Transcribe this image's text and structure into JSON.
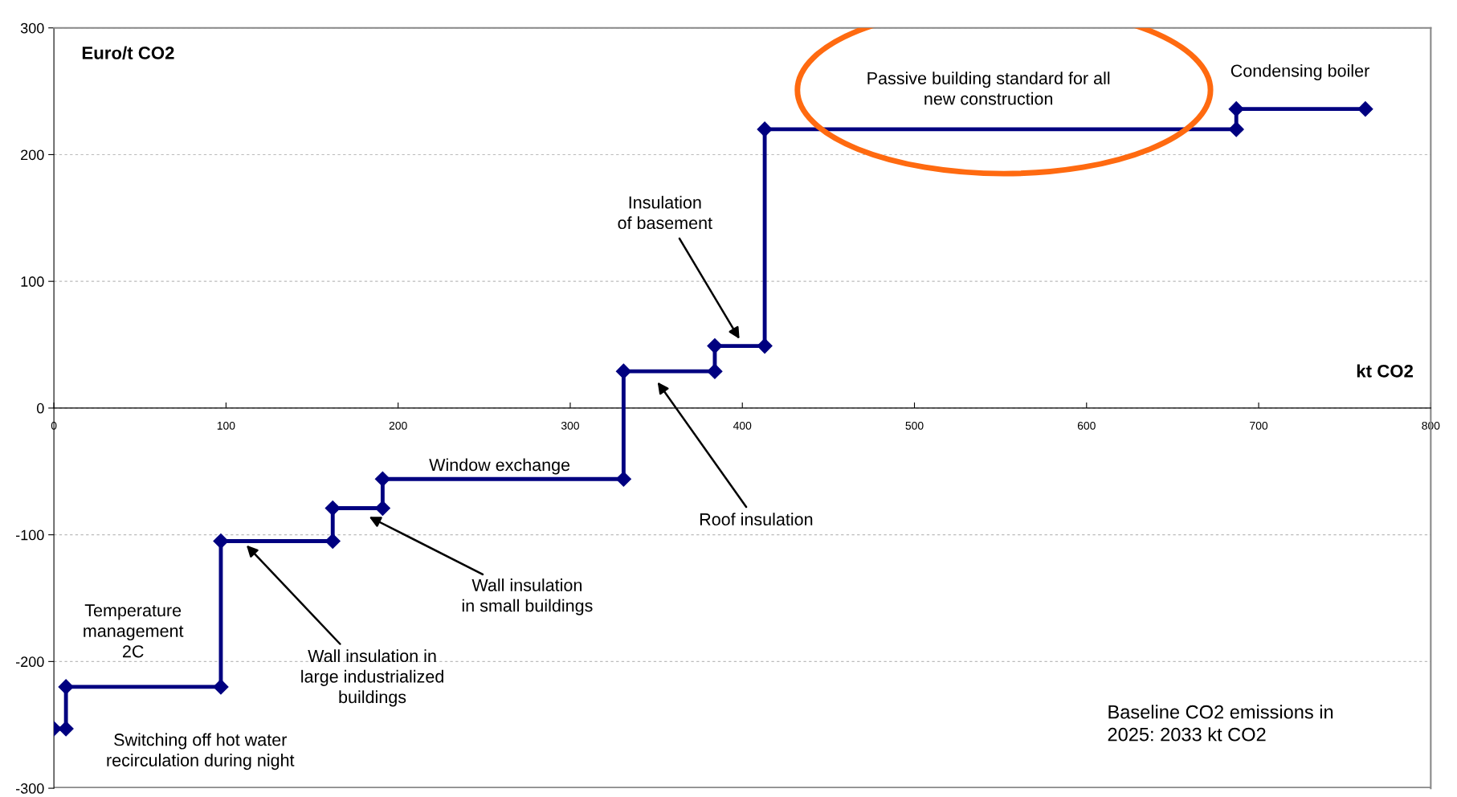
{
  "chart_data": {
    "type": "line",
    "xlabel": "kt CO2",
    "ylabel": "Euro/t CO2",
    "series": [
      {
        "color": "#000080",
        "x": [
          0,
          7,
          7,
          97,
          97,
          162,
          162,
          191,
          191,
          331,
          331,
          384,
          384,
          413,
          413,
          687,
          687,
          762
        ],
        "values": [
          -253,
          -253,
          -220,
          -220,
          -105,
          -105,
          -79,
          -79,
          -56,
          -56,
          29,
          29,
          49,
          49,
          220,
          220,
          236,
          236
        ]
      }
    ],
    "xlim": [
      0,
      800
    ],
    "xticks": [
      0,
      100,
      200,
      300,
      400,
      500,
      600,
      700,
      800
    ],
    "ylim": [
      -300,
      300
    ],
    "yticks": [
      -300,
      -200,
      -100,
      0,
      100,
      200,
      300
    ],
    "grid": "y",
    "marker": "diamond",
    "line_style": "solid",
    "annotations": [
      "Temperature\nmanagement\n2C",
      "Switching off hot water\nrecirculation during night",
      "Wall insulation in\nlarge industrialized\nbuildings",
      "Wall insulation\nin small buildings",
      "Window exchange",
      "Roof insulation",
      "Insulation\nof basement",
      "Passive building standard for all\nnew construction",
      "Condensing boiler",
      "Baseline CO2 emissions in\n2025: 2033 kt CO2"
    ]
  }
}
